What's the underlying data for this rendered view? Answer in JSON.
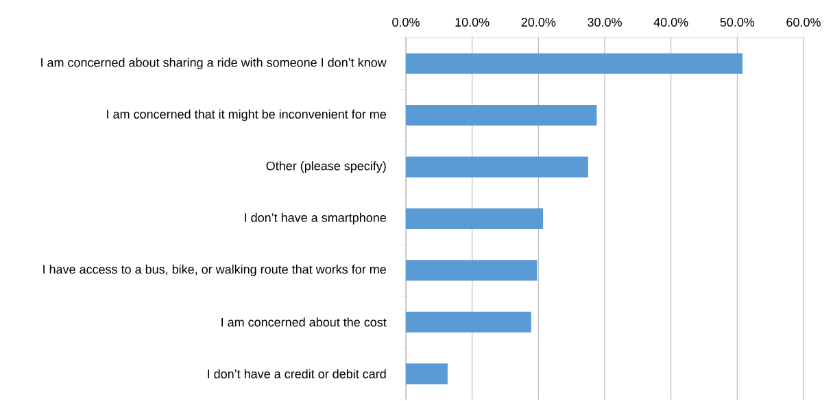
{
  "chart_data": {
    "type": "bar",
    "orientation": "horizontal",
    "categories": [
      "I am concerned about sharing a ride with someone I don’t know",
      "I am concerned that it might be inconvenient for me",
      "Other (please specify)",
      "I don’t have a smartphone",
      "I have access to a bus, bike, or walking route that works for me",
      "I am concerned about the cost",
      "I don’t have a credit or debit card"
    ],
    "values": [
      50.8,
      28.8,
      27.5,
      20.7,
      19.8,
      18.9,
      6.3
    ],
    "color": "#5b9bd5",
    "xlim": [
      0,
      60
    ],
    "xticks": [
      {
        "value": 0,
        "label": "0.0%"
      },
      {
        "value": 10,
        "label": "10.0%"
      },
      {
        "value": 20,
        "label": "20.0%"
      },
      {
        "value": 30,
        "label": "30.0%"
      },
      {
        "value": 40,
        "label": "40.0%"
      },
      {
        "value": 50,
        "label": "50.0%"
      },
      {
        "value": 60,
        "label": "60.0%"
      }
    ],
    "grid": "x"
  }
}
